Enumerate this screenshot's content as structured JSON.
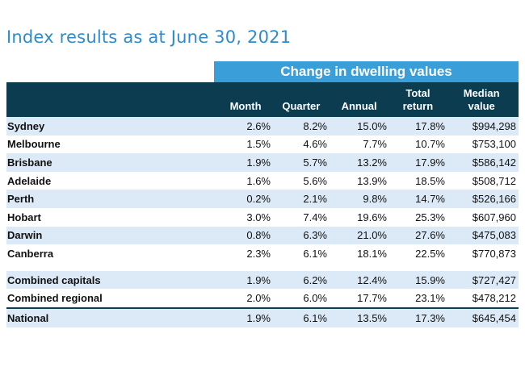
{
  "title": "Index results as at June 30, 2021",
  "band_label": "Change in dwelling values",
  "columns": [
    "Month",
    "Quarter",
    "Annual",
    "Total\nreturn",
    "Median\nvalue"
  ],
  "rows": [
    {
      "name": "Sydney",
      "cells": [
        "2.6%",
        "8.2%",
        "15.0%",
        "17.8%",
        "$994,298"
      ]
    },
    {
      "name": "Melbourne",
      "cells": [
        "1.5%",
        "4.6%",
        "7.7%",
        "10.7%",
        "$753,100"
      ]
    },
    {
      "name": "Brisbane",
      "cells": [
        "1.9%",
        "5.7%",
        "13.2%",
        "17.9%",
        "$586,142"
      ]
    },
    {
      "name": "Adelaide",
      "cells": [
        "1.6%",
        "5.6%",
        "13.9%",
        "18.5%",
        "$508,712"
      ]
    },
    {
      "name": "Perth",
      "cells": [
        "0.2%",
        "2.1%",
        "9.8%",
        "14.7%",
        "$526,166"
      ]
    },
    {
      "name": "Hobart",
      "cells": [
        "3.0%",
        "7.4%",
        "19.6%",
        "25.3%",
        "$607,960"
      ]
    },
    {
      "name": "Darwin",
      "cells": [
        "0.8%",
        "6.3%",
        "21.0%",
        "27.6%",
        "$475,083"
      ]
    },
    {
      "name": "Canberra",
      "cells": [
        "2.3%",
        "6.1%",
        "18.1%",
        "22.5%",
        "$770,873"
      ]
    }
  ],
  "summary_rows": [
    {
      "name": "Combined capitals",
      "cells": [
        "1.9%",
        "6.2%",
        "12.4%",
        "15.9%",
        "$727,427"
      ]
    },
    {
      "name": "Combined regional",
      "cells": [
        "2.0%",
        "6.0%",
        "17.7%",
        "23.1%",
        "$478,212"
      ]
    },
    {
      "name": "National",
      "cells": [
        "1.9%",
        "6.1%",
        "13.5%",
        "17.3%",
        "$645,454"
      ]
    }
  ],
  "colors": {
    "title": "#2e8bc9",
    "band": "#3a9ed9",
    "header": "#0b3c50",
    "shade": "#dce9f6"
  }
}
